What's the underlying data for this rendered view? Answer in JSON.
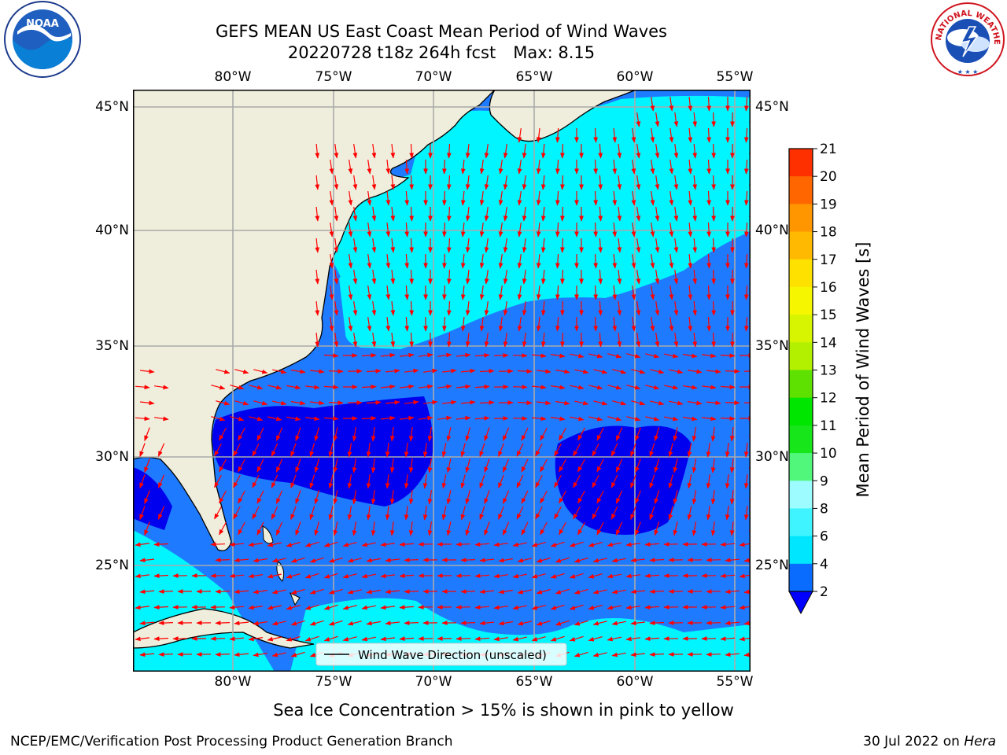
{
  "header": {
    "title_line1": "GEFS MEAN US East Coast Mean Period of Wind Waves",
    "run_info": "20220728 t18z 264h fcst",
    "max_label": "Max: 8.15"
  },
  "map": {
    "lon_labels": [
      "80°W",
      "75°W",
      "70°W",
      "65°W",
      "60°W",
      "55°W"
    ],
    "lat_labels": [
      "45°N",
      "40°N",
      "35°N",
      "30°N",
      "25°N"
    ],
    "legend_label": "Wind Wave Direction (unscaled)",
    "colors": {
      "land": "#efeedc",
      "band_2_4": "#1e7bff",
      "band_4_6": "#00f5ff",
      "band_below_2": "#0000ee",
      "arrow": "#ff0000",
      "grid": "#aaaaaa"
    }
  },
  "colorbar": {
    "label": "Mean Period of Wind Waves [s]",
    "ticks": [
      "2",
      "4",
      "6",
      "8",
      "9",
      "10",
      "11",
      "12",
      "13",
      "14",
      "15",
      "16",
      "17",
      "18",
      "19",
      "20",
      "21"
    ],
    "colors": [
      "#0a6cff",
      "#00e6ff",
      "#40f4ff",
      "#9cfcff",
      "#50f77a",
      "#16e61a",
      "#00e600",
      "#5ee100",
      "#b3f000",
      "#d7f400",
      "#f6f600",
      "#ffe100",
      "#ffb900",
      "#ff9600",
      "#ff6600",
      "#ff3000",
      "#ff0000"
    ],
    "extend_color": "#0000ff"
  },
  "footer": {
    "sea_ice_note": "Sea Ice Concentration > 15% is shown in pink to yellow",
    "credit": "NCEP/EMC/Verification Post Processing Product Generation Branch",
    "date": "30 Jul 2022",
    "on_word": "on",
    "machine": "Hera"
  },
  "logos": {
    "noaa_text": "NOAA",
    "nws_text": "NATIONAL WEATHER SERVICE"
  }
}
